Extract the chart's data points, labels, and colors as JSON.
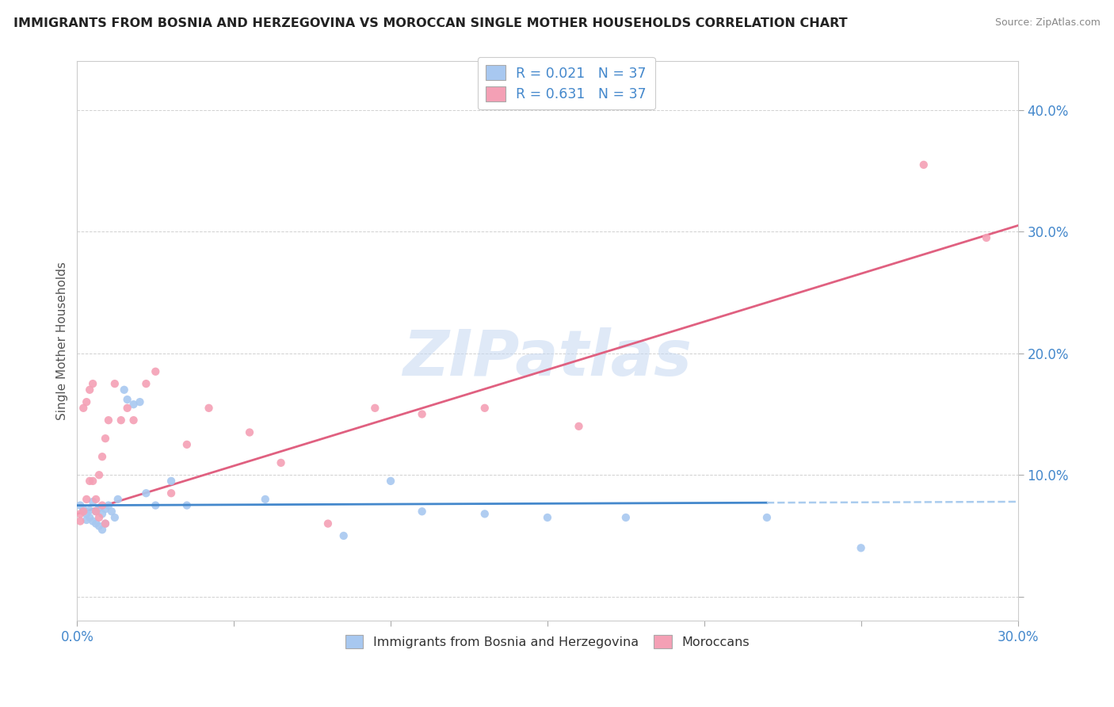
{
  "title": "IMMIGRANTS FROM BOSNIA AND HERZEGOVINA VS MOROCCAN SINGLE MOTHER HOUSEHOLDS CORRELATION CHART",
  "source": "Source: ZipAtlas.com",
  "ylabel": "Single Mother Households",
  "xlim": [
    0.0,
    0.3
  ],
  "ylim": [
    -0.02,
    0.44
  ],
  "xticks": [
    0.0,
    0.05,
    0.1,
    0.15,
    0.2,
    0.25,
    0.3
  ],
  "yticks": [
    0.0,
    0.1,
    0.2,
    0.3,
    0.4
  ],
  "ytick_labels": [
    "",
    "10.0%",
    "20.0%",
    "30.0%",
    "40.0%"
  ],
  "watermark": "ZIPatlas",
  "color_bosnia": "#a8c8f0",
  "color_morocco": "#f4a0b5",
  "color_line_bosnia_solid": "#4488cc",
  "color_line_bosnia_dashed": "#aaccee",
  "color_line_morocco": "#e06080",
  "color_text_axis": "#4488cc",
  "background_color": "#ffffff",
  "grid_color": "#cccccc",
  "R_bosnia": 0.021,
  "R_morocco": 0.631,
  "N": 37,
  "legend_label1": "Immigrants from Bosnia and Herzegovina",
  "legend_label2": "Moroccans",
  "bosnia_x": [
    0.001,
    0.002,
    0.003,
    0.003,
    0.004,
    0.004,
    0.005,
    0.005,
    0.006,
    0.006,
    0.007,
    0.007,
    0.008,
    0.008,
    0.009,
    0.009,
    0.01,
    0.011,
    0.012,
    0.013,
    0.015,
    0.016,
    0.018,
    0.02,
    0.022,
    0.025,
    0.03,
    0.035,
    0.06,
    0.085,
    0.1,
    0.11,
    0.13,
    0.15,
    0.175,
    0.22,
    0.25
  ],
  "bosnia_y": [
    0.075,
    0.072,
    0.068,
    0.063,
    0.071,
    0.065,
    0.078,
    0.062,
    0.07,
    0.06,
    0.073,
    0.058,
    0.068,
    0.055,
    0.072,
    0.06,
    0.075,
    0.07,
    0.065,
    0.08,
    0.17,
    0.162,
    0.158,
    0.16,
    0.085,
    0.075,
    0.095,
    0.075,
    0.08,
    0.05,
    0.095,
    0.07,
    0.068,
    0.065,
    0.065,
    0.065,
    0.04
  ],
  "morocco_x": [
    0.001,
    0.001,
    0.002,
    0.002,
    0.003,
    0.003,
    0.004,
    0.004,
    0.005,
    0.005,
    0.006,
    0.006,
    0.007,
    0.007,
    0.008,
    0.008,
    0.009,
    0.009,
    0.01,
    0.012,
    0.014,
    0.016,
    0.018,
    0.022,
    0.025,
    0.03,
    0.035,
    0.042,
    0.055,
    0.065,
    0.08,
    0.095,
    0.11,
    0.13,
    0.16,
    0.27,
    0.29
  ],
  "morocco_y": [
    0.068,
    0.062,
    0.155,
    0.07,
    0.16,
    0.08,
    0.17,
    0.095,
    0.175,
    0.095,
    0.08,
    0.07,
    0.1,
    0.065,
    0.115,
    0.075,
    0.13,
    0.06,
    0.145,
    0.175,
    0.145,
    0.155,
    0.145,
    0.175,
    0.185,
    0.085,
    0.125,
    0.155,
    0.135,
    0.11,
    0.06,
    0.155,
    0.15,
    0.155,
    0.14,
    0.355,
    0.295
  ],
  "trendline_morocco_x0": 0.0,
  "trendline_morocco_y0": 0.068,
  "trendline_morocco_x1": 0.3,
  "trendline_morocco_y1": 0.305,
  "trendline_bosnia_x0": 0.0,
  "trendline_bosnia_y0": 0.075,
  "trendline_bosnia_x1": 0.3,
  "trendline_bosnia_y1": 0.078,
  "trendline_bosnia_solid_end": 0.22
}
